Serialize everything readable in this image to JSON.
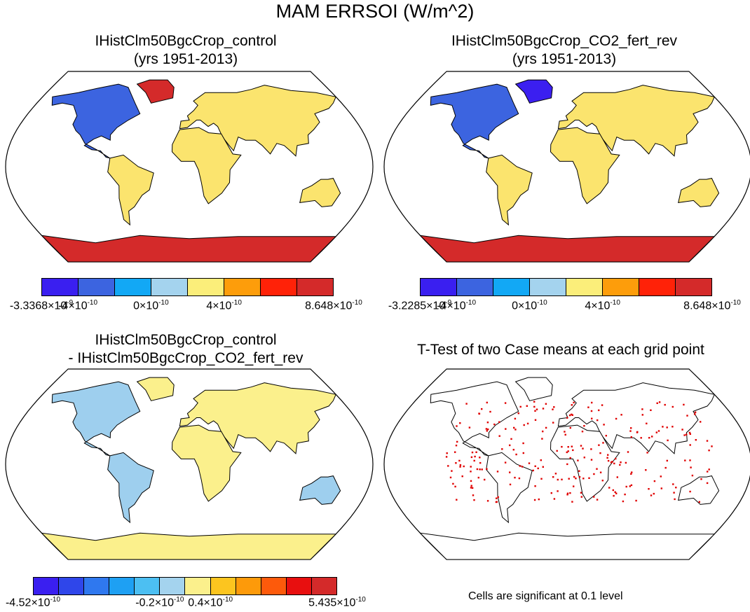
{
  "title": "MAM ERRSOI (W/m^2)",
  "panels": [
    {
      "title_line1": "IHistClm50BgcCrop_control",
      "title_line2": "(yrs 1951-2013)",
      "colorbar": {
        "colors": [
          "#3a1ff0",
          "#3c64e0",
          "#12a8f5",
          "#a4d3ee",
          "#fbee7a",
          "#fd9d0b",
          "#ff2208",
          "#d42a2a"
        ],
        "labels": [
          {
            "m": "-3.3368",
            "e": "-9"
          },
          {
            "m": "-4",
            "e": "-10"
          },
          {
            "m": "0",
            "e": "-10"
          },
          {
            "m": "4",
            "e": "-10"
          },
          {
            "m": "8.648",
            "e": "-10"
          }
        ]
      }
    },
    {
      "title_line1": "IHistClm50BgcCrop_CO2_fert_rev",
      "title_line2": "(yrs 1951-2013)",
      "colorbar": {
        "colors": [
          "#3a1ff0",
          "#3c64e0",
          "#12a8f5",
          "#a4d3ee",
          "#fbee7a",
          "#fd9d0b",
          "#ff2208",
          "#d42a2a"
        ],
        "labels": [
          {
            "m": "-3.2285",
            "e": "-9"
          },
          {
            "m": "-4",
            "e": "-10"
          },
          {
            "m": "0",
            "e": "-10"
          },
          {
            "m": "4",
            "e": "-10"
          },
          {
            "m": "8.648",
            "e": "-10"
          }
        ]
      }
    },
    {
      "title_line1": "IHistClm50BgcCrop_control",
      "title_line2": "- IHistClm50BgcCrop_CO2_fert_rev",
      "colorbar": {
        "colors": [
          "#3a1ff0",
          "#2f46ea",
          "#2f78ef",
          "#1ea0f3",
          "#4cbff2",
          "#a4d3ee",
          "#fbf08c",
          "#fcc51f",
          "#fd9a0a",
          "#fd5a0b",
          "#e80f0f",
          "#d42a2a"
        ],
        "labels": [
          {
            "m": "-4.52",
            "e": "-10"
          },
          {
            "m": "-0.2",
            "e": "-10"
          },
          {
            "m": "0.4",
            "e": "-10"
          },
          {
            "m": "5.435",
            "e": "-10"
          }
        ]
      }
    },
    {
      "title_line1": "T-Test of two Case means at each grid point",
      "title_line2": "",
      "note": "Cells are significant at 0.1 level"
    }
  ]
}
